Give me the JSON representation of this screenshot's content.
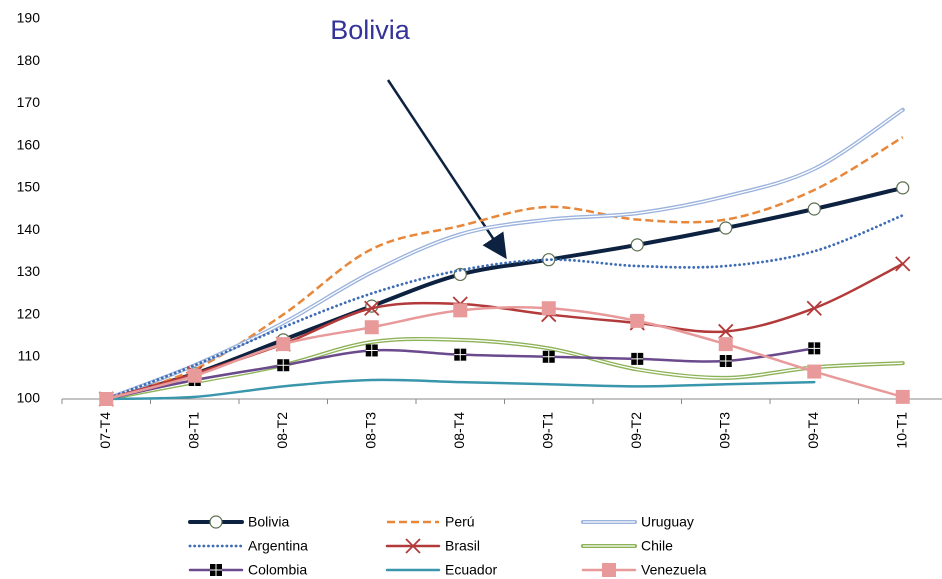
{
  "chart_data": {
    "type": "line",
    "annotation": "Bolivia",
    "smooth": true,
    "categories": [
      "07-T4",
      "08-T1",
      "08-T2",
      "08-T3",
      "08-T4",
      "09-T1",
      "09-T2",
      "09-T3",
      "09-T4",
      "10-T1"
    ],
    "ylim": [
      100,
      190
    ],
    "yticks": [
      100,
      110,
      120,
      130,
      140,
      150,
      160,
      170,
      180,
      190
    ],
    "legend": "bottom",
    "series": [
      {
        "name": "Bolivia",
        "color": "#0d2240",
        "style": "bold",
        "marker": "circle",
        "values": [
          100,
          106,
          114,
          122,
          129.5,
          133,
          136.5,
          140.5,
          145,
          150
        ]
      },
      {
        "name": "Perú",
        "color": "#e8873a",
        "style": "dashed",
        "marker": "none",
        "values": [
          100,
          107,
          120,
          135.5,
          141,
          145.5,
          142.5,
          142.5,
          149.5,
          162
        ]
      },
      {
        "name": "Uruguay",
        "color": "#9bb3dd",
        "style": "double",
        "marker": "none",
        "values": [
          100,
          108,
          118,
          130,
          139,
          142.5,
          144,
          148,
          154.5,
          168.5
        ]
      },
      {
        "name": "Argentina",
        "color": "#3e6db5",
        "style": "dotted",
        "marker": "none",
        "values": [
          100,
          108,
          117,
          125,
          130.5,
          133,
          131.5,
          131.5,
          135,
          143.5
        ]
      },
      {
        "name": "Brasil",
        "color": "#b33a3a",
        "style": "solid",
        "marker": "x",
        "values": [
          100,
          106,
          113,
          121.5,
          122.5,
          120,
          118,
          116,
          121.5,
          132
        ]
      },
      {
        "name": "Chile",
        "color": "#8db357",
        "style": "double",
        "marker": "none",
        "values": [
          100,
          104,
          108,
          113.5,
          114,
          112,
          107,
          105,
          107.5,
          108.5
        ]
      },
      {
        "name": "Colombia",
        "color": "#6a4a8c",
        "style": "solid",
        "marker": "square-cross",
        "values": [
          100,
          104.5,
          108,
          111.5,
          110.5,
          110,
          109.5,
          109,
          112,
          null
        ]
      },
      {
        "name": "Ecuador",
        "color": "#3a96ad",
        "style": "solid",
        "marker": "none",
        "values": [
          100,
          100.5,
          103,
          104.5,
          104,
          103.5,
          103,
          103.5,
          104,
          null
        ]
      },
      {
        "name": "Venezuela",
        "color": "#e89a9a",
        "style": "solid",
        "marker": "square",
        "values": [
          100,
          105.5,
          113,
          117,
          121,
          121.5,
          118.5,
          113,
          106.5,
          100.5
        ]
      }
    ]
  }
}
